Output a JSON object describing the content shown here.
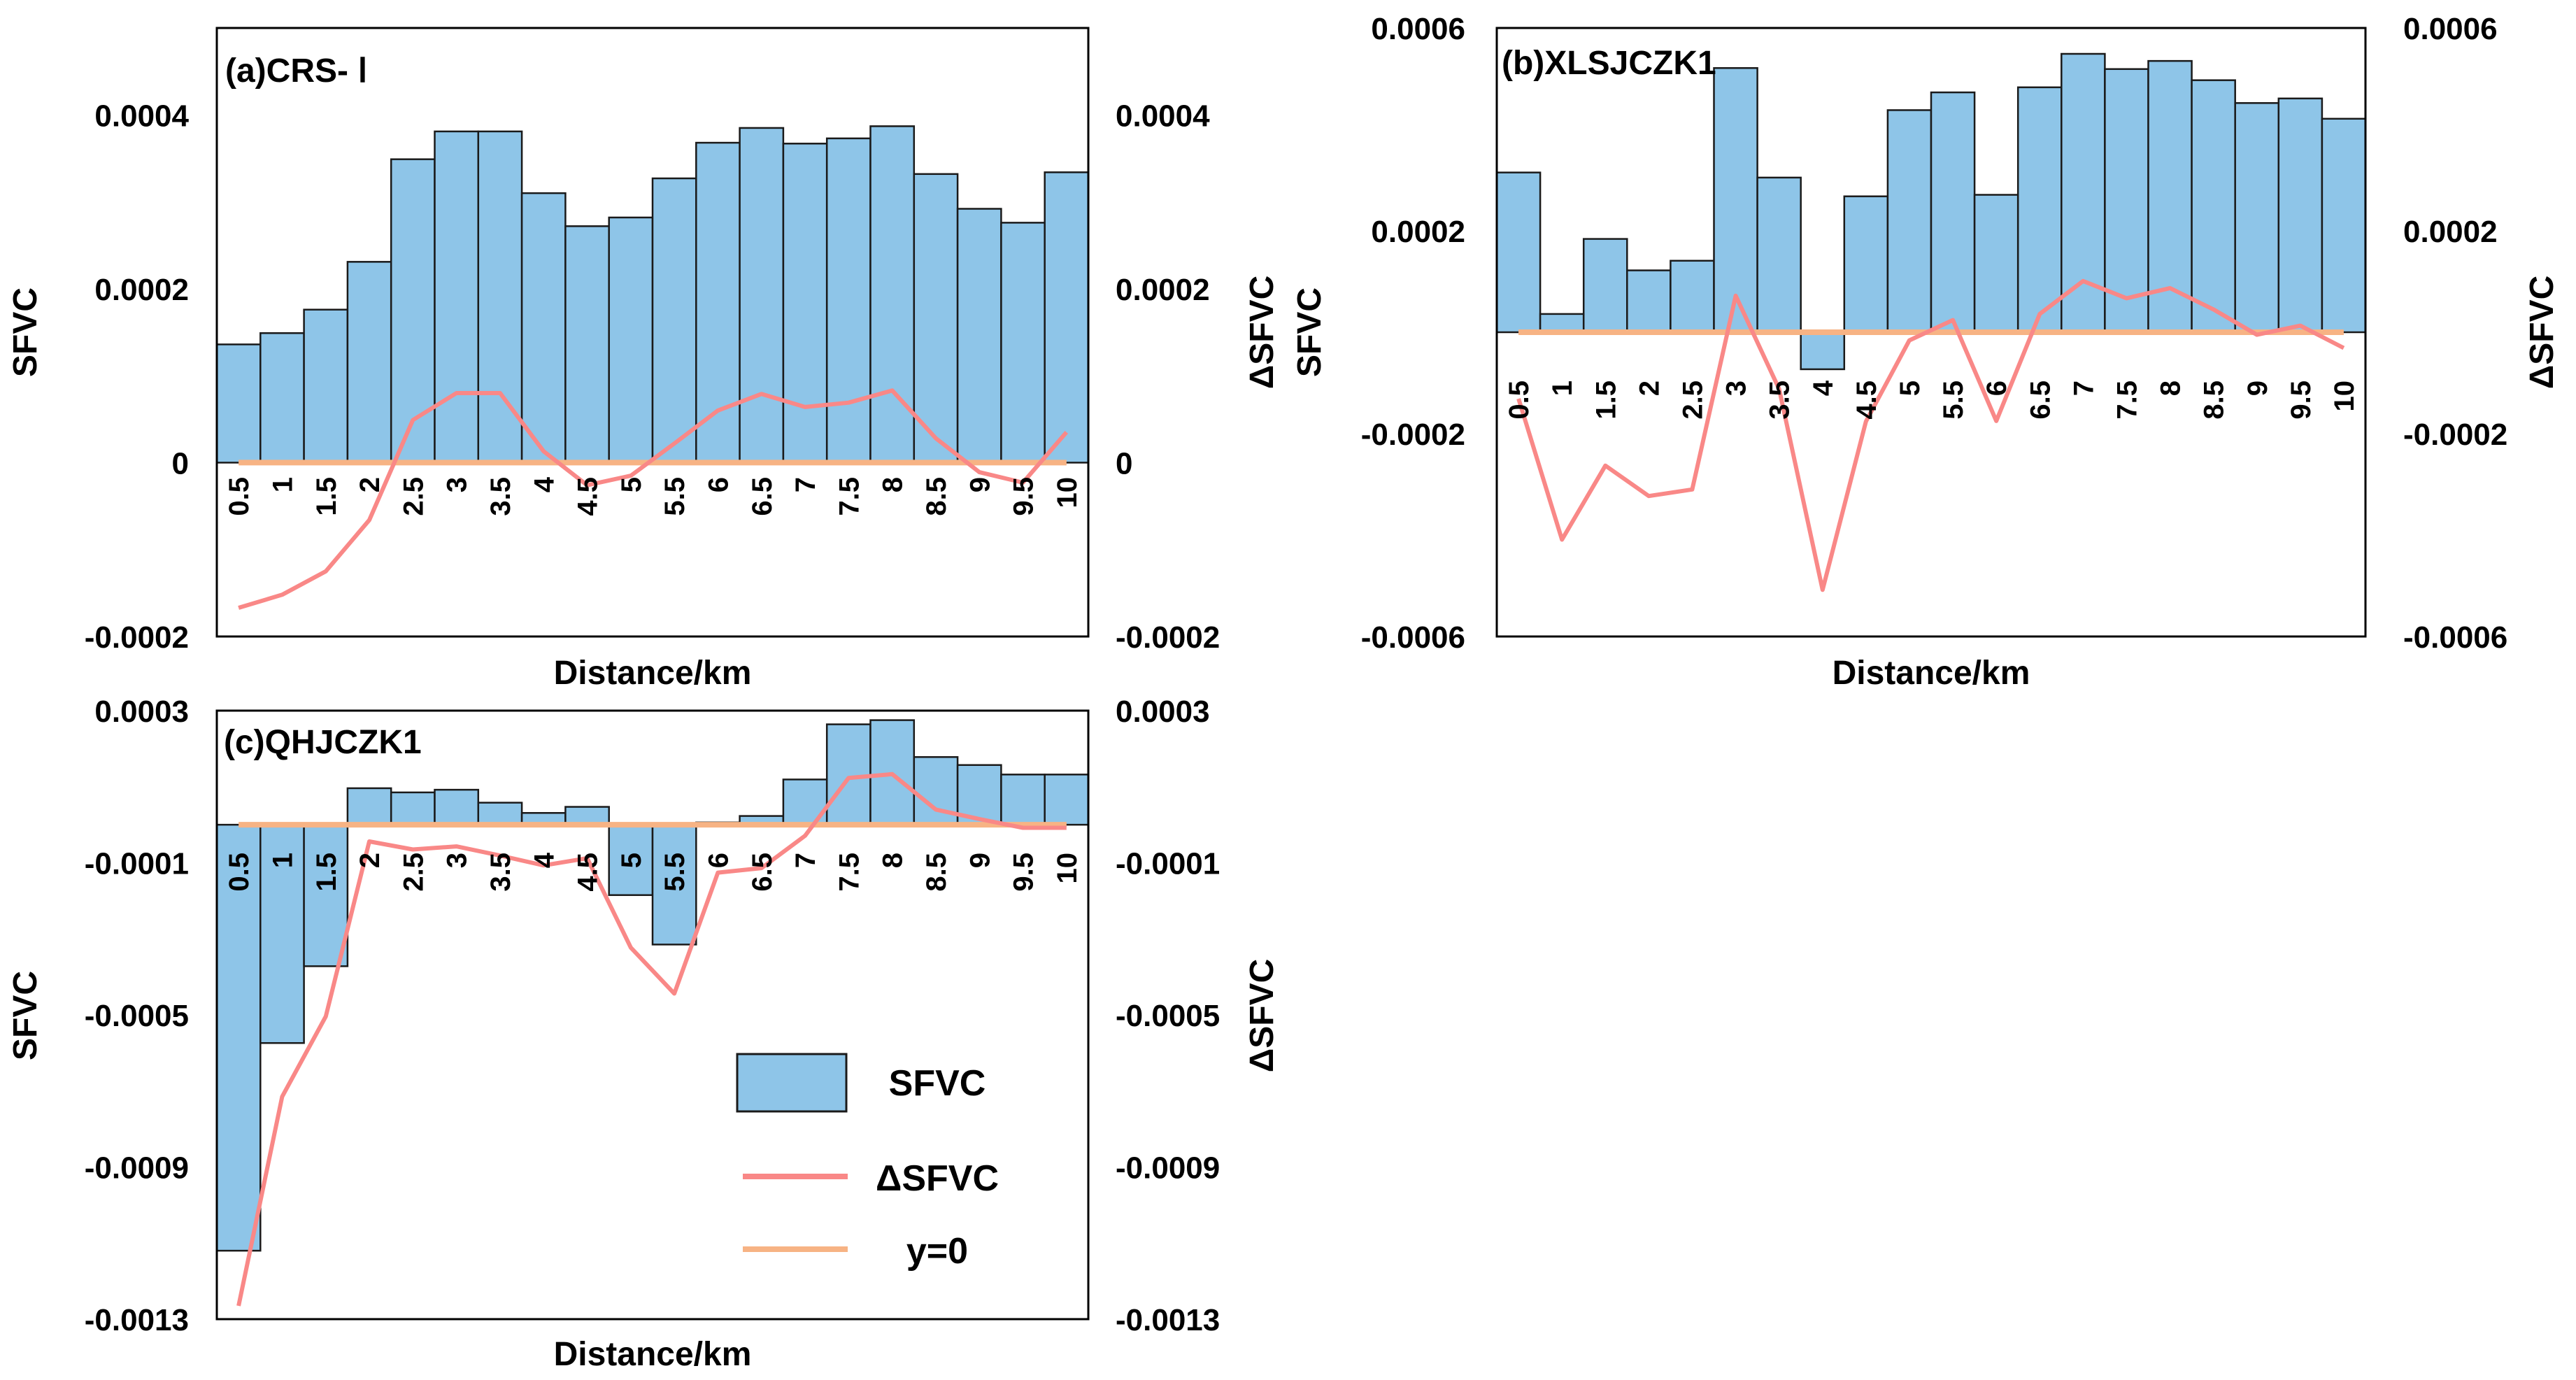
{
  "colors": {
    "bar": "#8ec5e8",
    "bar_stroke": "#1a1a1a",
    "delta_line": "#f98887",
    "zero_line": "#f7b384"
  },
  "legend": {
    "entries": [
      "SFVC",
      "ΔSFVC",
      "y=0"
    ]
  },
  "chart_data": [
    {
      "id": "a",
      "type": "bar+line",
      "title": "(a)CRS- Ⅰ",
      "xlabel": "Distance/km",
      "ylabel": "SFVC",
      "y2label": "ΔSFVC",
      "categories": [
        "0.5",
        "1",
        "1.5",
        "2",
        "2.5",
        "3",
        "3.5",
        "4",
        "4.5",
        "5",
        "5.5",
        "6",
        "6.5",
        "7",
        "7.5",
        "8",
        "8.5",
        "9",
        "9.5",
        "10"
      ],
      "ylim": [
        -0.0002,
        0.0005
      ],
      "yticks": [
        -0.0002,
        0,
        0.0002,
        0.0004
      ],
      "ytick_labels": [
        "-0.0002",
        "0",
        "0.0002",
        "0.0004"
      ],
      "y2lim": [
        -0.0002,
        0.0005
      ],
      "y2ticks": [
        -0.0002,
        0,
        0.0002,
        0.0004
      ],
      "y2tick_labels": [
        "-0.0002",
        "0",
        "0.0002",
        "0.0004"
      ],
      "series": [
        {
          "name": "SFVC",
          "kind": "bar",
          "values": [
            0.000136,
            0.000149,
            0.000176,
            0.000231,
            0.000349,
            0.000381,
            0.000381,
            0.00031,
            0.000272,
            0.000282,
            0.000327,
            0.000368,
            0.000385,
            0.000367,
            0.000373,
            0.000387,
            0.000332,
            0.000292,
            0.000276,
            0.000334
          ]
        },
        {
          "name": "ΔSFVC",
          "kind": "line",
          "values": [
            -0.000167,
            -0.000152,
            -0.000125,
            -6.6e-05,
            4.9e-05,
            8e-05,
            8e-05,
            1.3e-05,
            -2.6e-05,
            -1.5e-05,
            2.2e-05,
            6e-05,
            7.9e-05,
            6.4e-05,
            6.9e-05,
            8.3e-05,
            2.8e-05,
            -1.1e-05,
            -2.3e-05,
            3.5e-05
          ]
        },
        {
          "name": "y=0",
          "kind": "hline",
          "value": 0
        }
      ]
    },
    {
      "id": "b",
      "type": "bar+line",
      "title": "(b)XLSJCZK1",
      "xlabel": "Distance/km",
      "ylabel": "SFVC",
      "y2label": "ΔSFVC",
      "categories": [
        "0.5",
        "1",
        "1.5",
        "2",
        "2.5",
        "3",
        "3.5",
        "4",
        "4.5",
        "5",
        "5.5",
        "6",
        "6.5",
        "7",
        "7.5",
        "8",
        "8.5",
        "9",
        "9.5",
        "10"
      ],
      "ylim": [
        -0.0006,
        0.0006
      ],
      "yticks": [
        -0.0006,
        -0.0002,
        0.0002,
        0.0006
      ],
      "ytick_labels": [
        "-0.0006",
        "-0.0002",
        "0.0002",
        "0.0006"
      ],
      "y2lim": [
        -0.0006,
        0.0006
      ],
      "y2ticks": [
        -0.0006,
        -0.0002,
        0.0002,
        0.0006
      ],
      "y2tick_labels": [
        "-0.0006",
        "-0.0002",
        "0.0002",
        "0.0006"
      ],
      "series": [
        {
          "name": "SFVC",
          "kind": "bar",
          "values": [
            0.000315,
            3.6e-05,
            0.000184,
            0.000122,
            0.000141,
            0.000521,
            0.000305,
            -7.3e-05,
            0.000268,
            0.000438,
            0.000473,
            0.000271,
            0.000483,
            0.000549,
            0.000519,
            0.000535,
            0.000497,
            0.000452,
            0.000461,
            0.000421
          ]
        },
        {
          "name": "ΔSFVC",
          "kind": "line",
          "values": [
            -0.000131,
            -0.000409,
            -0.000263,
            -0.000323,
            -0.00031,
            7.2e-05,
            -0.000112,
            -0.000508,
            -0.000176,
            -1.6e-05,
            2.4e-05,
            -0.000175,
            3.6e-05,
            0.000101,
            6.7e-05,
            8.7e-05,
            4.5e-05,
            -5e-06,
            1.3e-05,
            -3.1e-05
          ]
        },
        {
          "name": "y=0",
          "kind": "hline",
          "value": 0
        }
      ]
    },
    {
      "id": "c",
      "type": "bar+line",
      "title": "(c)QHJCZK1",
      "xlabel": "Distance/km",
      "ylabel": "SFVC",
      "y2label": "ΔSFVC",
      "categories": [
        "0.5",
        "1",
        "1.5",
        "2",
        "2.5",
        "3",
        "3.5",
        "4",
        "4.5",
        "5",
        "5.5",
        "6",
        "6.5",
        "7",
        "7.5",
        "8",
        "8.5",
        "9",
        "9.5",
        "10"
      ],
      "ylim": [
        -0.0013,
        0.0003
      ],
      "yticks": [
        -0.0013,
        -0.0009,
        -0.0005,
        -0.0001,
        0.0003
      ],
      "ytick_labels": [
        "-0.0013",
        "-0.0009",
        "-0.0005",
        "-0.0001",
        "0.0003"
      ],
      "y2lim": [
        -0.0013,
        0.0003
      ],
      "y2ticks": [
        -0.0013,
        -0.0009,
        -0.0005,
        -0.0001,
        0.0003
      ],
      "y2tick_labels": [
        "-0.0013",
        "-0.0009",
        "-0.0005",
        "-0.0001",
        "0.0003"
      ],
      "series": [
        {
          "name": "SFVC",
          "kind": "bar",
          "values": [
            -0.00112,
            -0.000574,
            -0.000372,
            9.6e-05,
            8.5e-05,
            9.2e-05,
            5.8e-05,
            3.1e-05,
            4.7e-05,
            -0.000185,
            -0.000315,
            6e-06,
            2.3e-05,
            0.000119,
            0.000264,
            0.000275,
            0.000178,
            0.000157,
            0.000132,
            0.000132
          ]
        },
        {
          "name": "ΔSFVC",
          "kind": "line",
          "values": [
            -0.001265,
            -0.000715,
            -0.000504,
            -4.4e-05,
            -6.5e-05,
            -5.7e-05,
            -8.1e-05,
            -0.000107,
            -8.8e-05,
            -0.000323,
            -0.000444,
            -0.000126,
            -0.000114,
            -2.9e-05,
            0.000123,
            0.000133,
            4e-05,
            1.5e-05,
            -8e-06,
            -8e-06
          ]
        },
        {
          "name": "y=0",
          "kind": "hline",
          "value": 0
        }
      ]
    }
  ]
}
